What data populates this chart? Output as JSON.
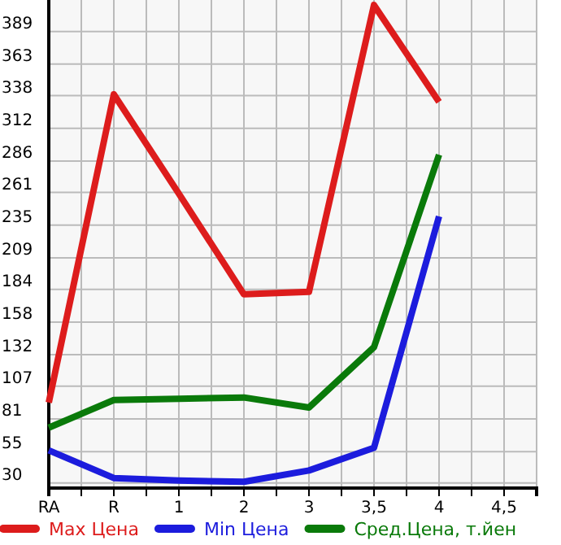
{
  "chart_data": {
    "type": "line",
    "categories": [
      "RA",
      "R",
      "1",
      "2",
      "3",
      "3,5",
      "4",
      "4,5"
    ],
    "series": [
      {
        "name": "Max Цена",
        "color": "#dd1c1c",
        "values": [
          94,
          339,
          260,
          180,
          182,
          410,
          333,
          null
        ]
      },
      {
        "name": "Min Цена",
        "color": "#1c1cdd",
        "values": [
          56,
          34,
          32,
          31,
          40,
          58,
          242,
          null
        ]
      },
      {
        "name": "Сред.Цена, т.йен",
        "color": "#0a7a0a",
        "values": [
          74,
          96,
          97,
          98,
          90,
          138,
          291,
          null
        ]
      }
    ],
    "ylim": [
      26,
      414
    ],
    "yticks": [
      30,
      55,
      81,
      107,
      132,
      158,
      184,
      209,
      235,
      261,
      286,
      312,
      338,
      363,
      389
    ],
    "grid": true,
    "legend": "bottom",
    "marker": "none",
    "line_style": "solid"
  }
}
